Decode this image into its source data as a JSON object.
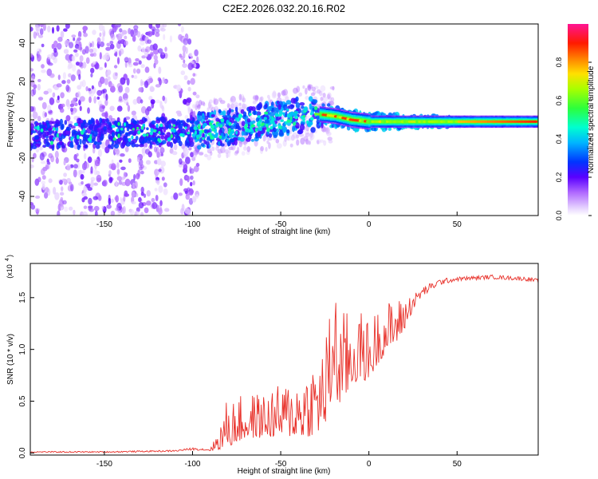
{
  "title": "C2E2.2026.032.20.16.R02",
  "chart_data": [
    {
      "type": "heatmap",
      "xlabel": "Height of straight line (km)",
      "ylabel": "Frequency (Hz)",
      "xlim": [
        -192,
        96
      ],
      "ylim": [
        -50,
        50
      ],
      "xticks": [
        -150,
        -100,
        -50,
        0,
        50
      ],
      "yticks": [
        -40,
        -20,
        0,
        20,
        40
      ],
      "grid": false,
      "ridge": {
        "x": [
          -192,
          -150,
          -100,
          -80,
          -60,
          -40,
          -30,
          -20,
          -10,
          0,
          20,
          50,
          80,
          96
        ],
        "y": [
          -8,
          -7,
          -6,
          -4,
          -1,
          2,
          3,
          2,
          0,
          -1,
          -1,
          -1,
          -1,
          -1
        ]
      },
      "colorbar": {
        "label": "Normalized spectral amplitude",
        "range": [
          0,
          1
        ],
        "ticks": [
          "0.0",
          "0.2",
          "0.4",
          "0.6",
          "0.8"
        ],
        "tick_values": [
          0,
          0.2,
          0.4,
          0.6,
          0.8
        ]
      }
    },
    {
      "type": "line",
      "xlabel": "Height of straight line (km)",
      "ylabel": "SNR (10 * v/v)",
      "scale_note": "(x10",
      "scale_exp": "4",
      "xlim": [
        -192,
        96
      ],
      "ylim": [
        -0.02,
        1.83
      ],
      "xticks": [
        -150,
        -100,
        -50,
        0,
        50
      ],
      "yticks": [
        "0.0",
        "0.5",
        "1.0",
        "1.5"
      ],
      "ytick_values": [
        0,
        0.5,
        1.0,
        1.5
      ],
      "grid": false,
      "series": [
        {
          "name": "SNR",
          "color": "#e8312a",
          "x": [
            -192,
            -150,
            -110,
            -100,
            -90,
            -83,
            -80,
            -78,
            -75,
            -70,
            -65,
            -60,
            -55,
            -50,
            -45,
            -40,
            -35,
            -30,
            -25,
            -22,
            -20,
            -18,
            -15,
            -12,
            -10,
            -5,
            0,
            5,
            10,
            15,
            20,
            25,
            30,
            35,
            40,
            50,
            60,
            70,
            80,
            90,
            96
          ],
          "y": [
            0.01,
            0.01,
            0.02,
            0.04,
            0.03,
            0.15,
            0.25,
            0.22,
            0.26,
            0.28,
            0.3,
            0.3,
            0.32,
            0.33,
            0.35,
            0.37,
            0.4,
            0.45,
            0.55,
            0.75,
            1.1,
            0.8,
            0.8,
            0.85,
            0.9,
            0.95,
            0.9,
            1.05,
            1.15,
            1.2,
            1.3,
            1.45,
            1.55,
            1.6,
            1.65,
            1.68,
            1.69,
            1.7,
            1.69,
            1.68,
            1.66
          ],
          "amp": [
            0.006,
            0.006,
            0.008,
            0.012,
            0.01,
            0.15,
            0.22,
            0.2,
            0.2,
            0.2,
            0.2,
            0.2,
            0.22,
            0.23,
            0.25,
            0.28,
            0.32,
            0.35,
            0.4,
            0.45,
            0.55,
            0.45,
            0.4,
            0.38,
            0.35,
            0.3,
            0.28,
            0.25,
            0.22,
            0.2,
            0.15,
            0.08,
            0.05,
            0.04,
            0.03,
            0.02,
            0.02,
            0.02,
            0.02,
            0.02,
            0.02
          ]
        }
      ]
    }
  ]
}
